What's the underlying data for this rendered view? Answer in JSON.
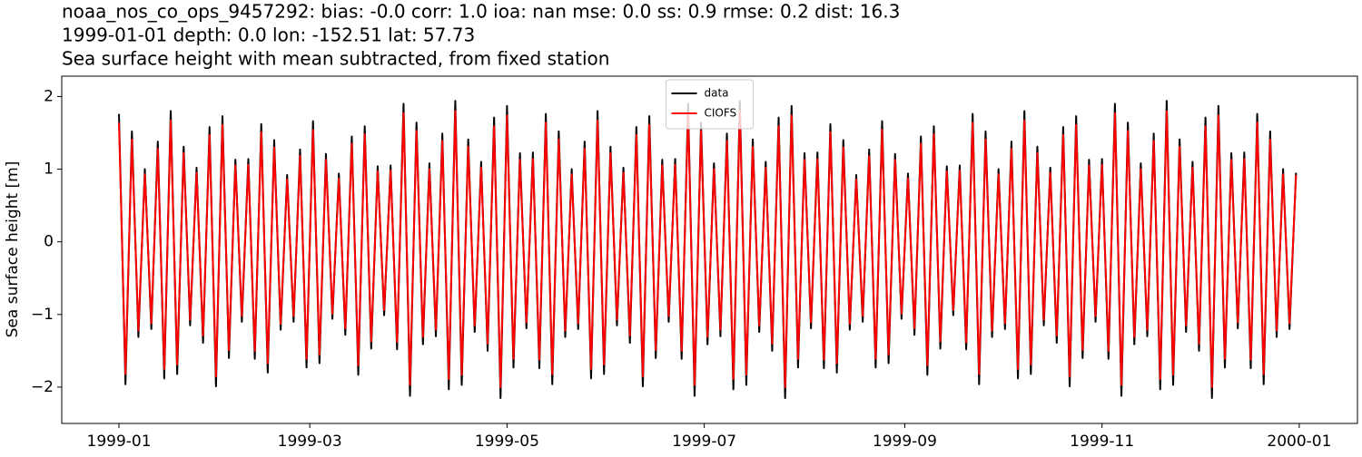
{
  "chart_data": {
    "type": "line",
    "title": [
      "noaa_nos_co_ops_9457292: bias: -0.0  corr: 1.0  ioa: nan  mse: 0.0  ss: 0.9  rmse: 0.2  dist: 16.3",
      "1999-01-01 depth: 0.0 lon: -152.51 lat: 57.73",
      "Sea surface height with mean subtracted, from fixed station"
    ],
    "ylabel": "Sea surface height [m]",
    "xlim": [
      -17.7,
      383
    ],
    "ylim": [
      -2.5,
      2.28
    ],
    "xticks": [
      {
        "value": 0,
        "label": "1999-01"
      },
      {
        "value": 59,
        "label": "1999-03"
      },
      {
        "value": 120,
        "label": "1999-05"
      },
      {
        "value": 181,
        "label": "1999-07"
      },
      {
        "value": 243,
        "label": "1999-09"
      },
      {
        "value": 304,
        "label": "1999-11"
      },
      {
        "value": 365,
        "label": "2000-01"
      }
    ],
    "yticks": [
      {
        "value": -2,
        "label": "−2"
      },
      {
        "value": -1,
        "label": "−1"
      },
      0,
      1,
      2
    ],
    "legend": "upper center",
    "x": [
      0,
      2,
      4,
      6,
      8,
      10,
      12,
      14,
      16,
      18,
      20,
      22,
      24,
      26,
      28,
      30,
      32,
      34,
      36,
      38,
      40,
      42,
      44,
      46,
      48,
      50,
      52,
      54,
      56,
      58,
      60,
      62,
      64,
      66,
      68,
      70,
      72,
      74,
      76,
      78,
      80,
      82,
      84,
      86,
      88,
      90,
      92,
      94,
      96,
      98,
      100,
      102,
      104,
      106,
      108,
      110,
      112,
      114,
      116,
      118,
      120,
      122,
      124,
      126,
      128,
      130,
      132,
      134,
      136,
      138,
      140,
      142,
      144,
      146,
      148,
      150,
      152,
      154,
      156,
      158,
      160,
      162,
      164,
      166,
      168,
      170,
      172,
      174,
      176,
      178,
      180,
      182,
      184,
      186,
      188,
      190,
      192,
      194,
      196,
      198,
      200,
      202,
      204,
      206,
      208,
      210,
      212,
      214,
      216,
      218,
      220,
      222,
      224,
      226,
      228,
      230,
      232,
      234,
      236,
      238,
      240,
      242,
      244,
      246,
      248,
      250,
      252,
      254,
      256,
      258,
      260,
      262,
      264,
      266,
      268,
      270,
      272,
      274,
      276,
      278,
      280,
      282,
      284,
      286,
      288,
      290,
      292,
      294,
      296,
      298,
      300,
      302,
      304,
      306,
      308,
      310,
      312,
      314,
      316,
      318,
      320,
      322,
      324,
      326,
      328,
      330,
      332,
      334,
      336,
      338,
      340,
      342,
      344,
      346,
      348,
      350,
      352,
      354,
      356,
      358,
      360,
      362,
      364
    ],
    "series": [
      {
        "name": "data",
        "color": "#000000",
        "values": [
          1.76,
          -1.96,
          1.52,
          -1.31,
          1.0,
          -1.2,
          1.38,
          -1.88,
          1.8,
          -1.82,
          1.31,
          -1.15,
          1.02,
          -1.39,
          1.58,
          -1.99,
          1.73,
          -1.6,
          1.13,
          -1.1,
          1.14,
          -1.61,
          1.62,
          -1.8,
          1.4,
          -1.21,
          0.92,
          -1.1,
          1.27,
          -1.73,
          1.66,
          -1.67,
          1.21,
          -1.06,
          0.94,
          -1.28,
          1.45,
          -1.83,
          1.59,
          -1.47,
          1.04,
          -1.01,
          1.05,
          -1.48,
          1.9,
          -2.12,
          1.64,
          -1.41,
          1.08,
          -1.3,
          1.49,
          -2.03,
          1.94,
          -1.97,
          1.41,
          -1.24,
          1.1,
          -1.5,
          1.71,
          -2.15,
          1.87,
          -1.73,
          1.22,
          -1.19,
          1.23,
          -1.74,
          1.76,
          -1.96,
          1.52,
          -1.31,
          1.0,
          -1.2,
          1.38,
          -1.88,
          1.8,
          -1.82,
          1.31,
          -1.15,
          1.02,
          -1.39,
          1.58,
          -1.99,
          1.73,
          -1.6,
          1.13,
          -1.1,
          1.14,
          -1.61,
          1.9,
          -2.12,
          1.64,
          -1.41,
          1.08,
          -1.3,
          1.49,
          -2.03,
          1.94,
          -1.97,
          1.41,
          -1.24,
          1.1,
          -1.5,
          1.71,
          -2.15,
          1.87,
          -1.73,
          1.22,
          -1.19,
          1.23,
          -1.74,
          1.62,
          -1.8,
          1.4,
          -1.21,
          0.92,
          -1.1,
          1.27,
          -1.73,
          1.66,
          -1.67,
          1.21,
          -1.06,
          0.94,
          -1.28,
          1.45,
          -1.83,
          1.59,
          -1.47,
          1.04,
          -1.01,
          1.05,
          -1.48,
          1.76,
          -1.96,
          1.52,
          -1.31,
          1.0,
          -1.2,
          1.38,
          -1.88,
          1.8,
          -1.82,
          1.31,
          -1.15,
          1.02,
          -1.39,
          1.58,
          -1.99,
          1.73,
          -1.6,
          1.13,
          -1.1,
          1.14,
          -1.61,
          1.9,
          -2.12,
          1.64,
          -1.41,
          1.08,
          -1.3,
          1.49,
          -2.03,
          1.94,
          -1.97,
          1.41,
          -1.24,
          1.1,
          -1.5,
          1.71,
          -2.15,
          1.87,
          -1.73,
          1.22,
          -1.19,
          1.23,
          -1.74,
          1.76,
          -1.96,
          1.52,
          -1.31,
          1.0,
          -1.2,
          0.95
        ]
      },
      {
        "name": "CIOFS",
        "color": "#ff0000",
        "values": [
          1.64,
          -1.82,
          1.41,
          -1.22,
          0.93,
          -1.12,
          1.28,
          -1.75,
          1.67,
          -1.69,
          1.22,
          -1.07,
          0.95,
          -1.29,
          1.47,
          -1.85,
          1.61,
          -1.49,
          1.05,
          -1.02,
          1.06,
          -1.5,
          1.51,
          -1.67,
          1.3,
          -1.13,
          0.86,
          -1.02,
          1.18,
          -1.61,
          1.54,
          -1.55,
          1.13,
          -0.99,
          0.87,
          -1.19,
          1.35,
          -1.7,
          1.48,
          -1.37,
          0.97,
          -0.94,
          0.98,
          -1.38,
          1.77,
          -1.97,
          1.53,
          -1.31,
          1.0,
          -1.21,
          1.39,
          -1.89,
          1.8,
          -1.83,
          1.31,
          -1.15,
          1.02,
          -1.4,
          1.59,
          -2.0,
          1.74,
          -1.61,
          1.13,
          -1.11,
          1.14,
          -1.62,
          1.64,
          -1.82,
          1.41,
          -1.22,
          0.93,
          -1.12,
          1.28,
          -1.75,
          1.67,
          -1.69,
          1.22,
          -1.07,
          0.95,
          -1.29,
          1.47,
          -1.85,
          1.61,
          -1.49,
          1.05,
          -1.02,
          1.06,
          -1.5,
          1.77,
          -1.97,
          1.53,
          -1.31,
          1.0,
          -1.21,
          1.39,
          -1.89,
          1.8,
          -1.83,
          1.31,
          -1.15,
          1.02,
          -1.4,
          1.59,
          -2.0,
          1.74,
          -1.61,
          1.13,
          -1.11,
          1.14,
          -1.62,
          1.51,
          -1.67,
          1.3,
          -1.13,
          0.86,
          -1.02,
          1.18,
          -1.61,
          1.54,
          -1.55,
          1.13,
          -0.99,
          0.87,
          -1.19,
          1.35,
          -1.7,
          1.48,
          -1.37,
          0.97,
          -0.94,
          0.98,
          -1.38,
          1.64,
          -1.82,
          1.41,
          -1.22,
          0.93,
          -1.12,
          1.28,
          -1.75,
          1.67,
          -1.69,
          1.22,
          -1.07,
          0.95,
          -1.29,
          1.47,
          -1.85,
          1.61,
          -1.49,
          1.05,
          -1.02,
          1.06,
          -1.5,
          1.77,
          -1.97,
          1.53,
          -1.31,
          1.0,
          -1.21,
          1.39,
          -1.89,
          1.8,
          -1.83,
          1.31,
          -1.15,
          1.02,
          -1.4,
          1.59,
          -2.0,
          1.74,
          -1.61,
          1.13,
          -1.11,
          1.14,
          -1.62,
          1.64,
          -1.82,
          1.41,
          -1.22,
          0.93,
          -1.12,
          0.92
        ]
      }
    ]
  }
}
